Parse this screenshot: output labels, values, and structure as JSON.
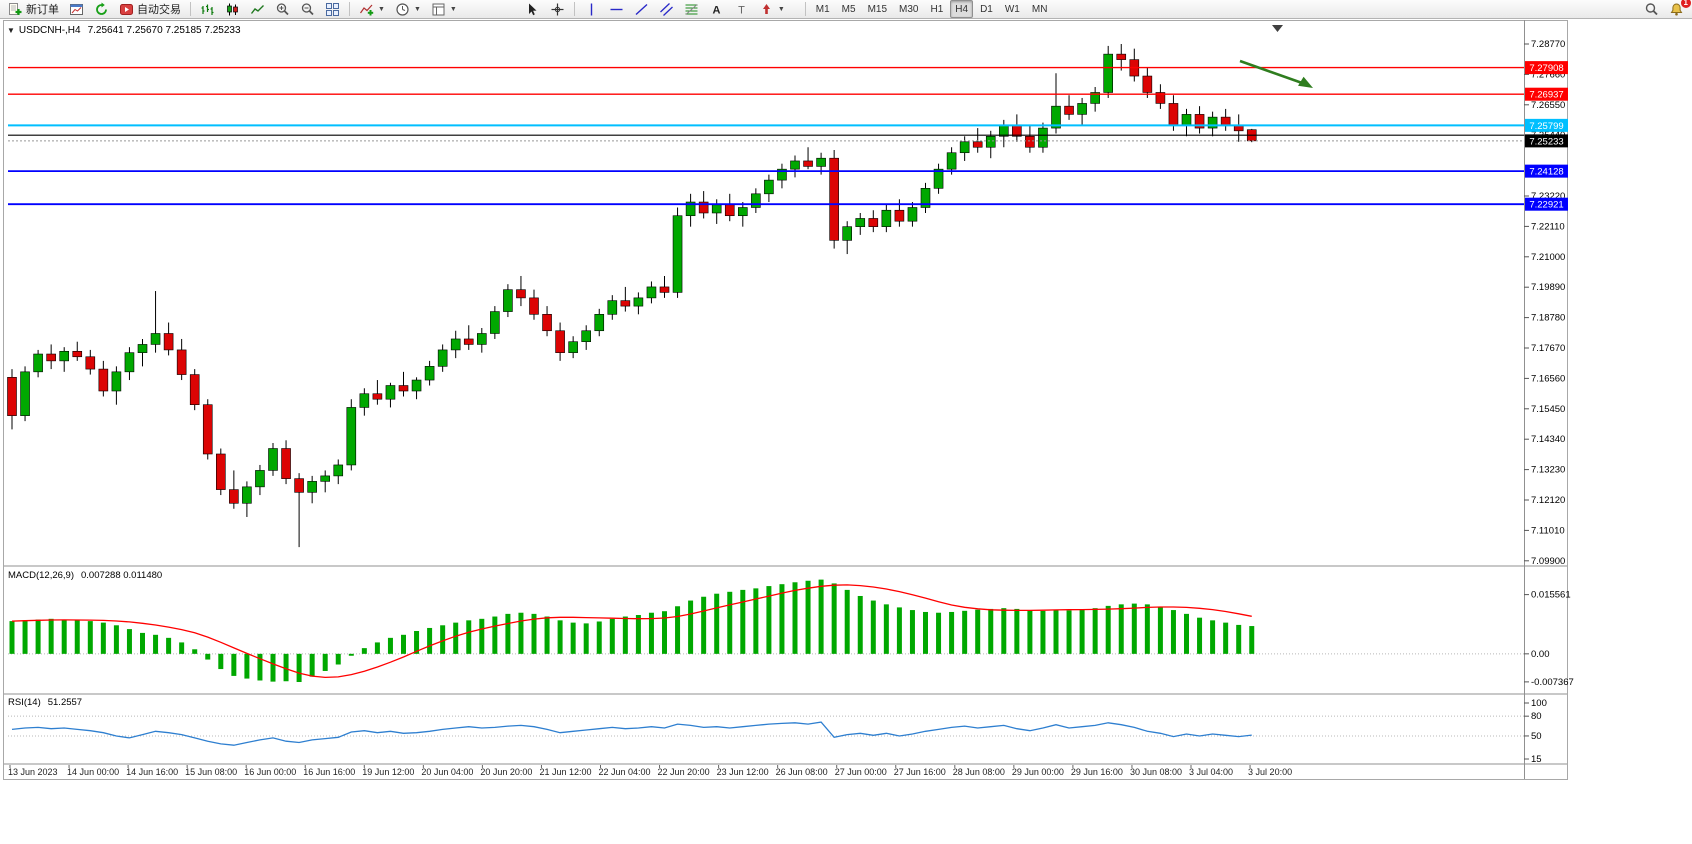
{
  "toolbar": {
    "new_order_label": "新订单",
    "autotrade_label": "自动交易",
    "timeframes": [
      "M1",
      "M5",
      "M15",
      "M30",
      "H1",
      "H4",
      "D1",
      "W1",
      "MN"
    ],
    "active_timeframe": "H4",
    "alert_badge": "1"
  },
  "chart": {
    "title": "USDCNH-,H4",
    "ohlc": "7.25641 7.25670 7.25185 7.25233"
  },
  "indicators": {
    "macd": {
      "label": "MACD(12,26,9)",
      "values": "0.007288 0.011480"
    },
    "rsi": {
      "label": "RSI(14)",
      "value": "51.2557"
    }
  },
  "price_axis": {
    "ticks": [
      "7.28770",
      "7.27660",
      "7.26550",
      "7.25440",
      "7.23220",
      "7.22110",
      "7.21000",
      "7.19890",
      "7.18780",
      "7.17670",
      "7.16560",
      "7.15450",
      "7.14340",
      "7.13230",
      "7.12120",
      "7.11010",
      "7.09900"
    ]
  },
  "macd_axis": {
    "labels": [
      "0.015561",
      "0.00",
      "-0.007367"
    ]
  },
  "rsi_axis": {
    "labels": [
      "100",
      "80",
      "50",
      "15"
    ]
  },
  "time_axis": {
    "labels": [
      "13 Jun 2023",
      "14 Jun 00:00",
      "14 Jun 16:00",
      "15 Jun 08:00",
      "16 Jun 00:00",
      "16 Jun 16:00",
      "19 Jun 12:00",
      "20 Jun 04:00",
      "20 Jun 20:00",
      "21 Jun 12:00",
      "22 Jun 04:00",
      "22 Jun 20:00",
      "23 Jun 12:00",
      "26 Jun 08:00",
      "27 Jun 00:00",
      "27 Jun 16:00",
      "28 Jun 08:00",
      "29 Jun 00:00",
      "29 Jun 16:00",
      "30 Jun 08:00",
      "3 Jul 04:00",
      "3 Jul 20:00"
    ]
  },
  "chart_data": {
    "type": "candlestick",
    "symbol": "USDCNH-",
    "period": "H4",
    "candles": [
      [
        7.166,
        7.169,
        7.147,
        7.152
      ],
      [
        7.152,
        7.17,
        7.15,
        7.168
      ],
      [
        7.168,
        7.176,
        7.166,
        7.1745
      ],
      [
        7.1745,
        7.178,
        7.169,
        7.172
      ],
      [
        7.172,
        7.177,
        7.168,
        7.1755
      ],
      [
        7.1755,
        7.179,
        7.172,
        7.1735
      ],
      [
        7.1735,
        7.176,
        7.167,
        7.169
      ],
      [
        7.169,
        7.172,
        7.159,
        7.161
      ],
      [
        7.161,
        7.17,
        7.156,
        7.168
      ],
      [
        7.168,
        7.177,
        7.165,
        7.175
      ],
      [
        7.175,
        7.18,
        7.17,
        7.178
      ],
      [
        7.178,
        7.1975,
        7.175,
        7.182
      ],
      [
        7.182,
        7.186,
        7.174,
        7.176
      ],
      [
        7.176,
        7.18,
        7.165,
        7.167
      ],
      [
        7.167,
        7.169,
        7.154,
        7.156
      ],
      [
        7.156,
        7.158,
        7.136,
        7.138
      ],
      [
        7.138,
        7.14,
        7.123,
        7.125
      ],
      [
        7.125,
        7.132,
        7.118,
        7.12
      ],
      [
        7.12,
        7.128,
        7.115,
        7.126
      ],
      [
        7.126,
        7.134,
        7.123,
        7.132
      ],
      [
        7.132,
        7.142,
        7.13,
        7.14
      ],
      [
        7.14,
        7.143,
        7.127,
        7.129
      ],
      [
        7.129,
        7.131,
        7.104,
        7.124
      ],
      [
        7.124,
        7.13,
        7.12,
        7.128
      ],
      [
        7.128,
        7.132,
        7.124,
        7.13
      ],
      [
        7.13,
        7.136,
        7.127,
        7.134
      ],
      [
        7.134,
        7.158,
        7.132,
        7.155
      ],
      [
        7.155,
        7.162,
        7.152,
        7.16
      ],
      [
        7.16,
        7.165,
        7.156,
        7.158
      ],
      [
        7.158,
        7.164,
        7.155,
        7.163
      ],
      [
        7.163,
        7.168,
        7.159,
        7.161
      ],
      [
        7.161,
        7.166,
        7.158,
        7.165
      ],
      [
        7.165,
        7.172,
        7.163,
        7.17
      ],
      [
        7.17,
        7.178,
        7.168,
        7.176
      ],
      [
        7.176,
        7.183,
        7.173,
        7.18
      ],
      [
        7.18,
        7.185,
        7.176,
        7.178
      ],
      [
        7.178,
        7.184,
        7.175,
        7.182
      ],
      [
        7.182,
        7.192,
        7.18,
        7.19
      ],
      [
        7.19,
        7.2,
        7.188,
        7.198
      ],
      [
        7.198,
        7.203,
        7.192,
        7.195
      ],
      [
        7.195,
        7.198,
        7.187,
        7.189
      ],
      [
        7.189,
        7.192,
        7.181,
        7.183
      ],
      [
        7.183,
        7.186,
        7.172,
        7.175
      ],
      [
        7.175,
        7.181,
        7.173,
        7.179
      ],
      [
        7.179,
        7.185,
        7.176,
        7.183
      ],
      [
        7.183,
        7.191,
        7.181,
        7.189
      ],
      [
        7.189,
        7.196,
        7.187,
        7.194
      ],
      [
        7.194,
        7.199,
        7.19,
        7.192
      ],
      [
        7.192,
        7.197,
        7.189,
        7.195
      ],
      [
        7.195,
        7.201,
        7.193,
        7.199
      ],
      [
        7.199,
        7.203,
        7.195,
        7.197
      ],
      [
        7.197,
        7.228,
        7.195,
        7.225
      ],
      [
        7.225,
        7.233,
        7.221,
        7.23
      ],
      [
        7.23,
        7.234,
        7.224,
        7.226
      ],
      [
        7.226,
        7.231,
        7.222,
        7.229
      ],
      [
        7.229,
        7.233,
        7.223,
        7.225
      ],
      [
        7.225,
        7.23,
        7.221,
        7.228
      ],
      [
        7.228,
        7.235,
        7.226,
        7.233
      ],
      [
        7.233,
        7.24,
        7.23,
        7.238
      ],
      [
        7.238,
        7.244,
        7.235,
        7.242
      ],
      [
        7.242,
        7.247,
        7.239,
        7.245
      ],
      [
        7.245,
        7.25,
        7.242,
        7.243
      ],
      [
        7.243,
        7.248,
        7.24,
        7.246
      ],
      [
        7.246,
        7.249,
        7.213,
        7.216
      ],
      [
        7.216,
        7.223,
        7.211,
        7.221
      ],
      [
        7.221,
        7.226,
        7.218,
        7.224
      ],
      [
        7.224,
        7.227,
        7.219,
        7.221
      ],
      [
        7.221,
        7.229,
        7.219,
        7.227
      ],
      [
        7.227,
        7.231,
        7.221,
        7.223
      ],
      [
        7.223,
        7.23,
        7.221,
        7.228
      ],
      [
        7.228,
        7.237,
        7.226,
        7.235
      ],
      [
        7.235,
        7.244,
        7.233,
        7.242
      ],
      [
        7.242,
        7.25,
        7.24,
        7.248
      ],
      [
        7.248,
        7.254,
        7.245,
        7.252
      ],
      [
        7.252,
        7.257,
        7.248,
        7.25
      ],
      [
        7.25,
        7.256,
        7.246,
        7.254
      ],
      [
        7.254,
        7.26,
        7.25,
        7.258
      ],
      [
        7.258,
        7.262,
        7.252,
        7.254
      ],
      [
        7.254,
        7.258,
        7.248,
        7.25
      ],
      [
        7.25,
        7.259,
        7.248,
        7.257
      ],
      [
        7.257,
        7.277,
        7.255,
        7.265
      ],
      [
        7.265,
        7.269,
        7.26,
        7.262
      ],
      [
        7.262,
        7.268,
        7.258,
        7.266
      ],
      [
        7.266,
        7.272,
        7.263,
        7.27
      ],
      [
        7.27,
        7.287,
        7.268,
        7.284
      ],
      [
        7.284,
        7.2877,
        7.278,
        7.282
      ],
      [
        7.282,
        7.286,
        7.274,
        7.276
      ],
      [
        7.276,
        7.279,
        7.268,
        7.27
      ],
      [
        7.27,
        7.273,
        7.264,
        7.266
      ],
      [
        7.266,
        7.269,
        7.256,
        7.258
      ],
      [
        7.258,
        7.264,
        7.254,
        7.262
      ],
      [
        7.262,
        7.265,
        7.255,
        7.257
      ],
      [
        7.257,
        7.263,
        7.254,
        7.261
      ],
      [
        7.261,
        7.264,
        7.256,
        7.258
      ],
      [
        7.258,
        7.262,
        7.252,
        7.256
      ],
      [
        7.25641,
        7.2567,
        7.25185,
        7.25233
      ]
    ],
    "macd_histogram": [
      0.0086,
      0.0088,
      0.009,
      0.0092,
      0.009,
      0.0088,
      0.0086,
      0.0082,
      0.0075,
      0.0065,
      0.0055,
      0.005,
      0.0042,
      0.003,
      0.0012,
      -0.0015,
      -0.004,
      -0.0058,
      -0.0065,
      -0.007,
      -0.0073,
      -0.0072,
      -0.0074,
      -0.006,
      -0.0045,
      -0.0028,
      -0.0005,
      0.0015,
      0.003,
      0.0042,
      0.005,
      0.006,
      0.0068,
      0.0075,
      0.0082,
      0.0088,
      0.0092,
      0.0098,
      0.0105,
      0.0108,
      0.0105,
      0.0098,
      0.0088,
      0.0082,
      0.008,
      0.0085,
      0.0092,
      0.0098,
      0.0102,
      0.0108,
      0.0112,
      0.0125,
      0.014,
      0.015,
      0.0158,
      0.0163,
      0.0168,
      0.0172,
      0.0178,
      0.0183,
      0.0188,
      0.0192,
      0.0195,
      0.0185,
      0.0168,
      0.0152,
      0.014,
      0.013,
      0.0122,
      0.0115,
      0.011,
      0.0108,
      0.011,
      0.0113,
      0.0116,
      0.0118,
      0.012,
      0.0118,
      0.0115,
      0.0113,
      0.0116,
      0.0114,
      0.0116,
      0.012,
      0.0126,
      0.013,
      0.0132,
      0.013,
      0.0124,
      0.0115,
      0.0105,
      0.0095,
      0.0088,
      0.0082,
      0.0076,
      0.0073
    ],
    "rsi": [
      60,
      62,
      63,
      61,
      62,
      60,
      58,
      55,
      50,
      47,
      52,
      57,
      55,
      52,
      47,
      42,
      38,
      36,
      40,
      44,
      47,
      42,
      40,
      44,
      46,
      48,
      56,
      58,
      55,
      57,
      54,
      55,
      57,
      60,
      62,
      64,
      62,
      63,
      65,
      66,
      64,
      60,
      55,
      57,
      59,
      61,
      63,
      61,
      62,
      64,
      62,
      68,
      66,
      63,
      64,
      62,
      64,
      66,
      68,
      69,
      70,
      68,
      71,
      48,
      52,
      54,
      51,
      54,
      50,
      53,
      57,
      60,
      63,
      65,
      62,
      64,
      66,
      61,
      58,
      62,
      67,
      62,
      64,
      66,
      70,
      67,
      63,
      57,
      54,
      49,
      53,
      50,
      53,
      51,
      49,
      51.26
    ],
    "hlines": [
      {
        "price": 7.27908,
        "label": "7.27908",
        "color": "#ff0000",
        "width": 1.4
      },
      {
        "price": 7.26937,
        "label": "7.26937",
        "color": "#ff0000",
        "width": 1.4
      },
      {
        "price": 7.25799,
        "label": "7.25799",
        "color": "#00bfff",
        "width": 2
      },
      {
        "price": 7.2544,
        "label": "",
        "color": "#000000",
        "width": 1.2
      },
      {
        "price": 7.24128,
        "label": "7.24128",
        "color": "#0000ff",
        "width": 1.8
      },
      {
        "price": 7.22921,
        "label": "7.22921",
        "color": "#0000ff",
        "width": 1.8
      }
    ],
    "bid": {
      "price": 7.25233,
      "label": "7.25233"
    },
    "annotations": [
      {
        "type": "arrow",
        "direction": "down-right",
        "color": "#2f7d1f"
      }
    ],
    "colors": {
      "up": "#00a800",
      "down": "#dc0404",
      "wick": "#000000",
      "macd_hist": "#00a800",
      "macd_signal": "#ff0000",
      "rsi_line": "#2e7fd0"
    }
  }
}
